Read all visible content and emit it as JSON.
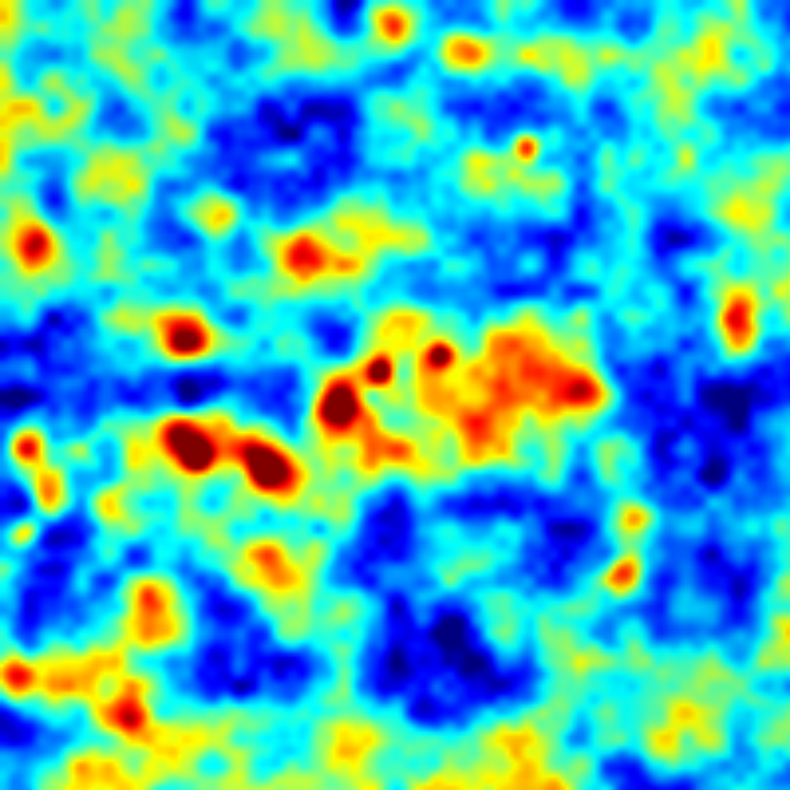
{
  "image": {
    "kind": "heatmap-noise-texture",
    "colormap": "jet",
    "colormap_stops": [
      "#00008f",
      "#0000ff",
      "#0080ff",
      "#00ffff",
      "#80ff80",
      "#ffff00",
      "#ff8000",
      "#ff0000",
      "#800000"
    ],
    "dominant_color": "#1b6bf0",
    "hotspot_color": "#ff2000",
    "labels_visible": false
  }
}
